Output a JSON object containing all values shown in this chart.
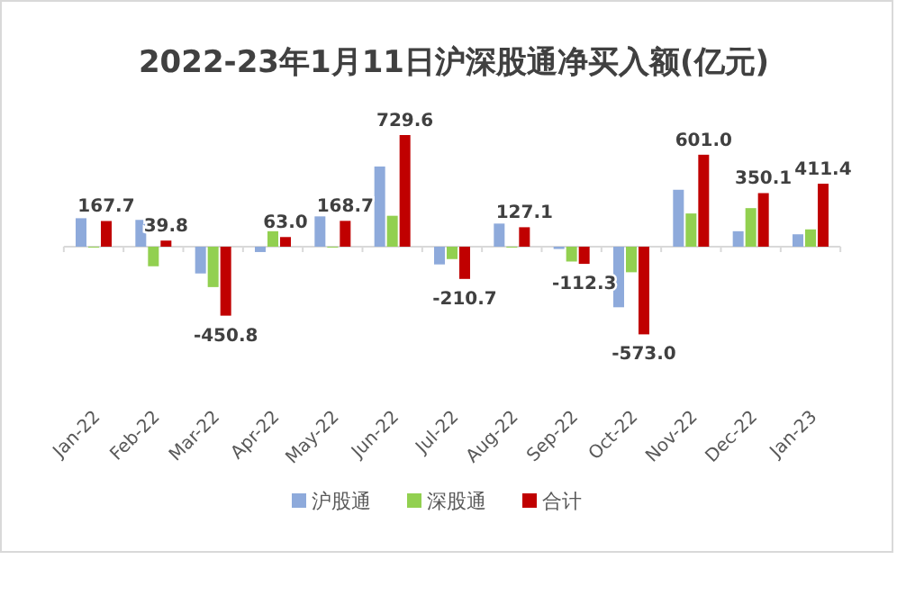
{
  "chart_data": {
    "type": "bar",
    "title": "2022-23年1月11日沪深股通净买入额(亿元)",
    "categories": [
      "Jan-22",
      "Feb-22",
      "Mar-22",
      "Apr-22",
      "May-22",
      "Jun-22",
      "Jul-22",
      "Aug-22",
      "Sep-22",
      "Oct-22",
      "Nov-22",
      "Dec-22",
      "Jan-23"
    ],
    "series": [
      {
        "name": "沪股通",
        "color": "#8eaadb",
        "values": [
          186,
          175,
          -175,
          -35,
          198,
          524,
          -116,
          151,
          -15,
          -396,
          372,
          101,
          81
        ]
      },
      {
        "name": "深股通",
        "color": "#92d050",
        "values": [
          -5,
          -128,
          -264,
          101,
          -5,
          202,
          -81,
          -5,
          -97,
          -167,
          217,
          252,
          113
        ]
      },
      {
        "name": "合计",
        "color": "#c00000",
        "values": [
          167.7,
          39.8,
          -450.8,
          63.0,
          168.7,
          729.6,
          -210.7,
          127.1,
          -112.3,
          -573.0,
          601.0,
          350.1,
          411.4
        ],
        "value_labels": [
          "167.7",
          "39.8",
          "-450.8",
          "63.0",
          "168.7",
          "729.6",
          "-210.7",
          "127.1",
          "-112.3",
          "-573.0",
          "601.0",
          "350.1",
          "411.4"
        ]
      }
    ],
    "legend": "bottom"
  }
}
